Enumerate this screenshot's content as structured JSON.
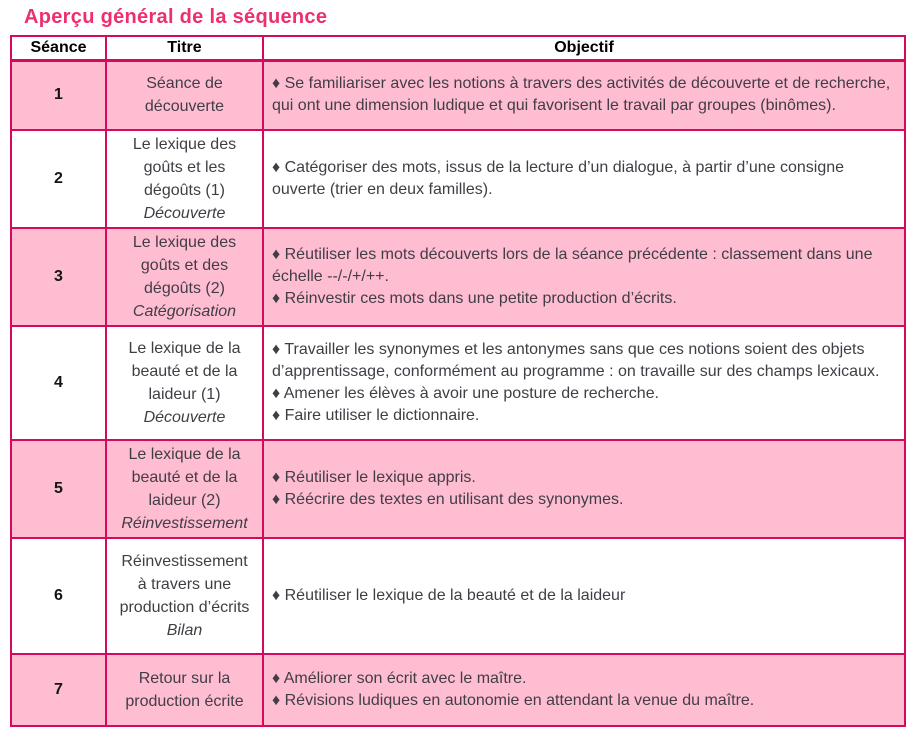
{
  "title": "Aperçu général de la séquence",
  "colors": {
    "accent": "#ed2f72",
    "border": "#d6095f",
    "row_pink": "#ffbdd2",
    "text": "#413d45"
  },
  "table": {
    "headers": [
      {
        "label": "Séance"
      },
      {
        "label": "Titre"
      },
      {
        "label": "Objectif"
      }
    ],
    "rows": [
      {
        "seance": "1",
        "title": "Séance de découverte",
        "subtitle": "",
        "objectives": [
          "♦ Se familiariser avec les notions à travers des activités de découverte et de recherche, qui ont une dimension ludique et qui favorisent le travail par groupes (binômes)."
        ]
      },
      {
        "seance": "2",
        "title": "Le lexique des goûts et les dégoûts (1)",
        "subtitle": "Découverte",
        "objectives": [
          "♦ Catégoriser des mots, issus de la lecture d’un dialogue, à partir d’une consigne ouverte (trier en deux familles)."
        ]
      },
      {
        "seance": "3",
        "title": "Le lexique des goûts et des dégoûts (2)",
        "subtitle": "Catégorisation",
        "objectives": [
          "♦ Réutiliser les mots découverts lors de la séance précédente : classement dans une échelle --/-/+/++.",
          "♦ Réinvestir ces mots dans une petite production d’écrits."
        ]
      },
      {
        "seance": "4",
        "title": "Le lexique de la beauté et de la laideur (1)",
        "subtitle": "Découverte",
        "objectives": [
          "♦ Travailler les synonymes et les antonymes sans que ces notions soient des objets d’apprentissage,  conformément au programme : on travaille sur des champs lexicaux.",
          "♦ Amener les élèves à avoir une posture de recherche.",
          "♦ Faire utiliser le dictionnaire."
        ]
      },
      {
        "seance": "5",
        "title": "Le lexique de la beauté et de la laideur (2)",
        "subtitle": "Réinvestissement",
        "objectives": [
          "♦ Réutiliser le lexique appris.",
          "♦ Réécrire des textes en utilisant des synonymes."
        ]
      },
      {
        "seance": "6",
        "title": "Réinvestissement à travers une production d’écrits",
        "subtitle": "Bilan",
        "objectives": [
          "♦ Réutiliser le lexique de la beauté et de la laideur"
        ]
      },
      {
        "seance": "7",
        "title": "Retour sur la production écrite",
        "subtitle": "",
        "objectives": [
          "♦ Améliorer son écrit avec le maître.",
          "♦ Révisions ludiques en autonomie en attendant la venue du maître."
        ]
      }
    ]
  }
}
